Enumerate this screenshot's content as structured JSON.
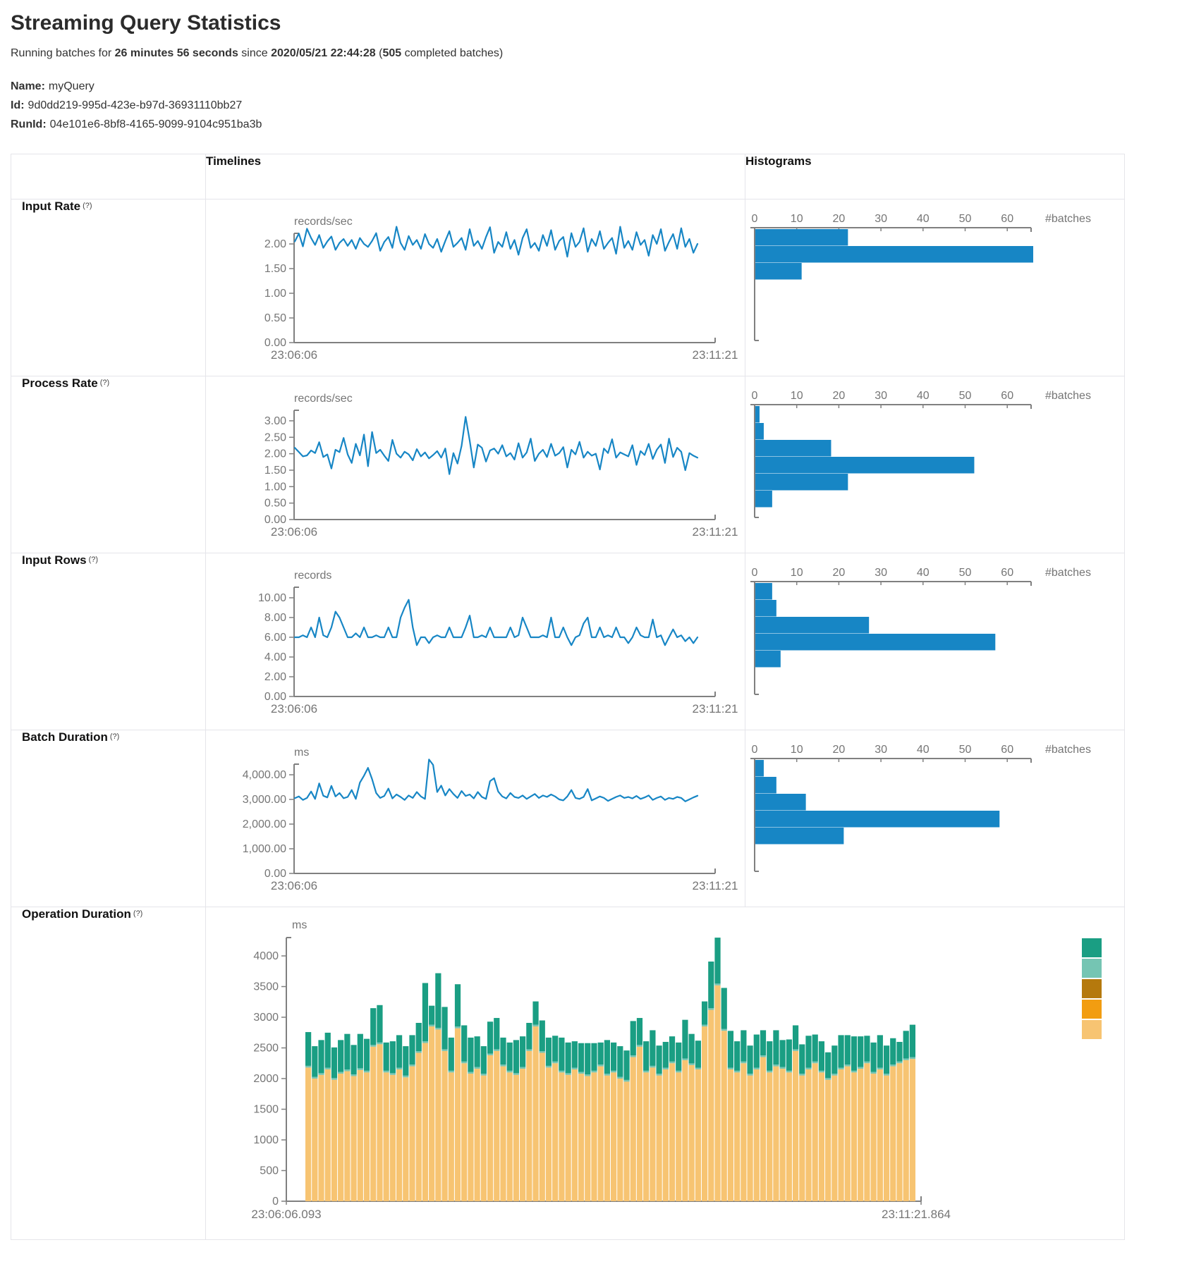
{
  "header": {
    "title": "Streaming Query Statistics",
    "subtitle_parts": {
      "p1": "Running batches for ",
      "duration": "26 minutes 56 seconds",
      "p2": " since ",
      "start_time": "2020/05/21 22:44:28",
      "p3": " (",
      "batches": "505",
      "p4": " completed batches)"
    },
    "meta": {
      "name_label": "Name:",
      "name": "myQuery",
      "id_label": "Id:",
      "id": "9d0dd219-995d-423e-b97d-36931110bb27",
      "runid_label": "RunId:",
      "runid": "04e101e6-8bf8-4165-9099-9104c951ba3b"
    }
  },
  "table": {
    "col_headers": {
      "timelines": "Timelines",
      "histograms": "Histograms"
    },
    "rows": [
      {
        "label": "Input Rate",
        "help": "(?)"
      },
      {
        "label": "Process Rate",
        "help": "(?)"
      },
      {
        "label": "Input Rows",
        "help": "(?)"
      },
      {
        "label": "Batch Duration",
        "help": "(?)"
      },
      {
        "label": "Operation Duration",
        "help": "(?)"
      }
    ]
  },
  "colors": {
    "blue": "#1786c5",
    "axis_gray": "#808080",
    "text_gray": "#757575",
    "stack_base": "#f7c472",
    "stack_sliver": "#75c5b3",
    "stack_top": "#1a9e83",
    "legend": [
      "#1a9e83",
      "#75c5b3",
      "#b5790d",
      "#f29d11",
      "#f7c472"
    ]
  },
  "chart_data": [
    {
      "name": "input-rate-timeline",
      "type": "line",
      "panel": "timeline",
      "unit": "records/sec",
      "x_start": "23:06:06",
      "x_end": "23:11:21",
      "ytick_values": [
        2,
        1.5,
        1,
        0.5,
        0
      ],
      "ytick_labels": [
        "2.00",
        "1.50",
        "1.00",
        "0.50",
        "0.00"
      ],
      "ymax": 2.215,
      "values": [
        2.05,
        2.21,
        1.95,
        2.31,
        2.12,
        1.98,
        2.18,
        1.92,
        2.05,
        2.15,
        1.88,
        2.02,
        2.1,
        1.96,
        2.08,
        1.9,
        2.12,
        2.0,
        1.94,
        2.06,
        2.22,
        1.86,
        2.04,
        2.14,
        1.92,
        2.35,
        2.02,
        1.88,
        2.16,
        1.98,
        2.08,
        1.9,
        2.2,
        2.0,
        1.92,
        2.1,
        1.84,
        2.06,
        2.26,
        1.94,
        2.02,
        2.12,
        1.88,
        2.3,
        1.96,
        2.06,
        1.9,
        2.14,
        2.34,
        1.82,
        2.04,
        1.94,
        2.24,
        1.9,
        2.08,
        1.78,
        2.12,
        2.3,
        1.92,
        2.02,
        1.86,
        2.18,
        1.96,
        2.28,
        1.88,
        2.06,
        2.14,
        1.74,
        2.22,
        1.94,
        2.04,
        2.32,
        1.84,
        2.1,
        1.96,
        2.26,
        1.9,
        2.02,
        2.12,
        1.8,
        2.35,
        1.92,
        2.06,
        1.88,
        2.24,
        1.98,
        2.08,
        1.76,
        2.18,
        2.0,
        2.3,
        1.86,
        2.04,
        2.2,
        1.9,
        2.32,
        1.94,
        2.1,
        1.82,
        2.0
      ]
    },
    {
      "name": "input-rate-histogram",
      "type": "bar-h",
      "panel": "histogram",
      "xlabel": "#batches",
      "ticks": [
        0,
        10,
        20,
        30,
        40,
        50,
        60
      ],
      "values": [
        22,
        66,
        11
      ]
    },
    {
      "name": "process-rate-timeline",
      "type": "line",
      "panel": "timeline",
      "unit": "records/sec",
      "x_start": "23:06:06",
      "x_end": "23:11:21",
      "ytick_values": [
        3,
        2.5,
        2,
        1.5,
        1,
        0.5,
        0
      ],
      "ytick_labels": [
        "3.00",
        "2.50",
        "2.00",
        "1.50",
        "1.00",
        "0.50",
        "0.00"
      ],
      "ymax": 3.32,
      "values": [
        2.18,
        2.05,
        1.92,
        1.95,
        2.1,
        2.02,
        2.35,
        1.9,
        1.98,
        1.55,
        2.12,
        2.05,
        2.48,
        1.98,
        1.72,
        2.3,
        1.95,
        2.58,
        1.62,
        2.66,
        2.02,
        2.12,
        1.94,
        1.78,
        2.42,
        2.0,
        1.88,
        2.06,
        1.98,
        1.8,
        2.14,
        1.92,
        2.04,
        1.86,
        1.96,
        2.08,
        1.88,
        2.16,
        1.38,
        2.02,
        1.7,
        2.24,
        3.12,
        2.4,
        1.58,
        2.28,
        2.18,
        1.76,
        2.1,
        2.16,
        2.0,
        2.26,
        1.92,
        2.02,
        1.82,
        2.32,
        1.88,
        2.04,
        2.46,
        1.78,
        2.0,
        2.12,
        1.9,
        2.3,
        1.94,
        2.02,
        2.2,
        1.58,
        2.12,
        1.98,
        2.36,
        1.88,
        2.06,
        1.94,
        2.0,
        1.52,
        2.16,
        2.02,
        2.44,
        1.88,
        2.04,
        1.98,
        1.92,
        2.26,
        1.66,
        2.08,
        1.96,
        2.3,
        1.84,
        2.12,
        2.28,
        1.72,
        2.46,
        1.9,
        2.18,
        2.06,
        1.5,
        2.02,
        1.94,
        1.88
      ]
    },
    {
      "name": "process-rate-histogram",
      "type": "bar-h",
      "panel": "histogram",
      "xlabel": "#batches",
      "ticks": [
        0,
        10,
        20,
        30,
        40,
        50,
        60
      ],
      "values": [
        1,
        2,
        18,
        52,
        22,
        4
      ]
    },
    {
      "name": "input-rows-timeline",
      "type": "line",
      "panel": "timeline",
      "unit": "records",
      "x_start": "23:06:06",
      "x_end": "23:11:21",
      "ytick_values": [
        10,
        8,
        6,
        4,
        2,
        0
      ],
      "ytick_labels": [
        "10.00",
        "8.00",
        "6.00",
        "4.00",
        "2.00",
        "0.00"
      ],
      "ymax": 11.07,
      "values": [
        6,
        6,
        6.2,
        6,
        7,
        6,
        8,
        6.2,
        6,
        7,
        8.6,
        8,
        7,
        6,
        6,
        6.4,
        6,
        7,
        6,
        6,
        6.2,
        6,
        6,
        7,
        6,
        6,
        8,
        9,
        9.8,
        7,
        5.2,
        6,
        6,
        5.4,
        6,
        6.2,
        6,
        6,
        7,
        6,
        6,
        6,
        7,
        8.2,
        6,
        6,
        6.2,
        6,
        7,
        6,
        6,
        6,
        6,
        7,
        6,
        6.2,
        8,
        7,
        6,
        6,
        6,
        6.2,
        6,
        8,
        6,
        6,
        7,
        6,
        5.2,
        6,
        6.2,
        7.4,
        8,
        6,
        6,
        7,
        6,
        6.2,
        6,
        7,
        6,
        6,
        5.4,
        6,
        7,
        6.2,
        6,
        6,
        7.8,
        6,
        6.2,
        5.2,
        6,
        6.8,
        6,
        6.2,
        5.6,
        6,
        5.4,
        6
      ]
    },
    {
      "name": "input-rows-histogram",
      "type": "bar-h",
      "panel": "histogram",
      "xlabel": "#batches",
      "ticks": [
        0,
        10,
        20,
        30,
        40,
        50,
        60
      ],
      "values": [
        4,
        5,
        27,
        57,
        6
      ]
    },
    {
      "name": "batch-duration-timeline",
      "type": "line",
      "panel": "timeline",
      "unit": "ms",
      "x_start": "23:06:06",
      "x_end": "23:11:21",
      "ytick_values": [
        4000,
        3000,
        2000,
        1000,
        0
      ],
      "ytick_labels": [
        "4,000.00",
        "3,000.00",
        "2,000.00",
        "1,000.00",
        "0.00"
      ],
      "ymax": 4430,
      "values": [
        3050,
        3120,
        2980,
        3060,
        3320,
        3020,
        3650,
        3150,
        3080,
        3550,
        3120,
        3260,
        3050,
        3100,
        3380,
        3020,
        3680,
        3960,
        4280,
        3820,
        3260,
        3060,
        3140,
        3440,
        3040,
        3200,
        3100,
        2980,
        3160,
        3060,
        3300,
        3120,
        3020,
        4620,
        4400,
        3300,
        3560,
        3160,
        3420,
        3220,
        3060,
        3340,
        3140,
        3200,
        3040,
        3300,
        3100,
        3020,
        3740,
        3860,
        3320,
        3120,
        3040,
        3260,
        3100,
        3060,
        3160,
        3020,
        3120,
        3220,
        3060,
        3160,
        3100,
        3200,
        3120,
        3000,
        2960,
        3120,
        3380,
        3060,
        3020,
        3100,
        3420,
        2960,
        3040,
        3120,
        3060,
        2940,
        3020,
        3100,
        3160,
        3060,
        3100,
        3040,
        3140,
        3020,
        3080,
        3160,
        2980,
        3060,
        3120,
        2980,
        3060,
        3020,
        3100,
        3060,
        2920,
        3000,
        3080,
        3150
      ]
    },
    {
      "name": "batch-duration-histogram",
      "type": "bar-h",
      "panel": "histogram",
      "xlabel": "#batches",
      "ticks": [
        0,
        10,
        20,
        30,
        40,
        50,
        60
      ],
      "values": [
        2,
        5,
        12,
        58,
        21
      ]
    },
    {
      "name": "operation-duration",
      "type": "stacked-bar",
      "panel": "stacked",
      "unit": "ms",
      "x_start": "23:06:06.093",
      "x_end": "23:11:21.864",
      "ytick_values": [
        0,
        500,
        1000,
        1500,
        2000,
        2500,
        3000,
        3500,
        4000
      ],
      "ytick_labels": [
        "0",
        "500",
        "1000",
        "1500",
        "2000",
        "2500",
        "3000",
        "3500",
        "4000"
      ],
      "sliver": 28,
      "base": [
        2180,
        2000,
        2060,
        2150,
        1980,
        2080,
        2120,
        2040,
        2140,
        2100,
        2520,
        2560,
        2100,
        2060,
        2150,
        2020,
        2200,
        2420,
        2580,
        2850,
        2800,
        2450,
        2100,
        2820,
        2250,
        2080,
        2160,
        2050,
        2380,
        2450,
        2200,
        2100,
        2060,
        2160,
        2450,
        2850,
        2420,
        2180,
        2250,
        2100,
        2060,
        2150,
        2080,
        2040,
        2100,
        2200,
        2050,
        2100,
        2000,
        1950,
        2350,
        2520,
        2100,
        2180,
        2050,
        2150,
        2250,
        2100,
        2300,
        2220,
        2150,
        2850,
        3120,
        3520,
        2780,
        2150,
        2100,
        2250,
        2050,
        2150,
        2350,
        2100,
        2200,
        2160,
        2100,
        2450,
        2050,
        2150,
        2250,
        2100,
        1980,
        2050,
        2150,
        2200,
        2100,
        2160,
        2250,
        2080,
        2150,
        2050,
        2200,
        2250,
        2300,
        2320
      ],
      "top": [
        550,
        500,
        540,
        570,
        500,
        520,
        580,
        480,
        560,
        520,
        600,
        610,
        460,
        520,
        530,
        480,
        480,
        460,
        950,
        310,
        890,
        690,
        540,
        690,
        590,
        560,
        500,
        450,
        520,
        510,
        440,
        460,
        540,
        500,
        430,
        380,
        500,
        460,
        420,
        540,
        500,
        430,
        470,
        510,
        450,
        360,
        550,
        460,
        500,
        480,
        560,
        440,
        480,
        580,
        460,
        420,
        410,
        460,
        630,
        480,
        440,
        380,
        760,
        750,
        670,
        600,
        480,
        510,
        460,
        540,
        410,
        480,
        560,
        440,
        510,
        390,
        480,
        520,
        440,
        480,
        420,
        460,
        530,
        480,
        560,
        500,
        420,
        480,
        530,
        460,
        430,
        320,
        450,
        530
      ]
    }
  ]
}
